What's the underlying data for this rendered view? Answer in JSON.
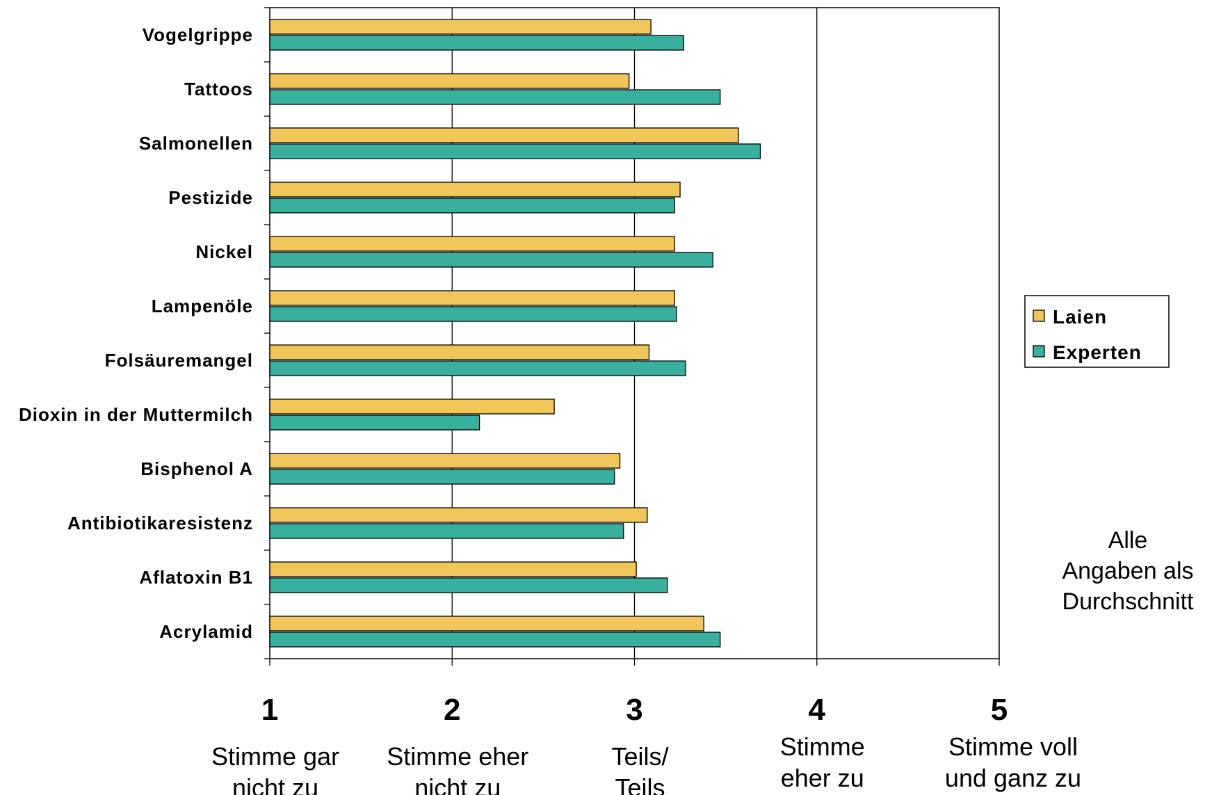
{
  "chart_data": {
    "type": "bar",
    "orientation": "horizontal",
    "categories": [
      "Vogelgrippe",
      "Tattoos",
      "Salmonellen",
      "Pestizide",
      "Nickel",
      "Lampenöle",
      "Folsäuremangel",
      "Dioxin in der Muttermilch",
      "Bisphenol A",
      "Antibiotikaresistenz",
      "Aflatoxin B1",
      "Acrylamid"
    ],
    "series": [
      {
        "name": "Laien",
        "color": "#f0c65a",
        "values": [
          3.09,
          2.97,
          3.57,
          3.25,
          3.22,
          3.22,
          3.08,
          2.56,
          2.92,
          3.07,
          3.01,
          3.38
        ]
      },
      {
        "name": "Experten",
        "color": "#38b09d",
        "values": [
          3.27,
          3.47,
          3.69,
          3.22,
          3.43,
          3.23,
          3.28,
          2.15,
          2.89,
          2.94,
          3.18,
          3.47
        ]
      }
    ],
    "xlim": [
      1,
      5
    ],
    "xticks": [
      {
        "value": 1,
        "label": "1",
        "desc": [
          "Stimme gar",
          "nicht zu"
        ]
      },
      {
        "value": 2,
        "label": "2",
        "desc": [
          "Stimme eher",
          "nicht zu"
        ]
      },
      {
        "value": 3,
        "label": "3",
        "desc": [
          "Teils/",
          "Teils"
        ]
      },
      {
        "value": 4,
        "label": "4",
        "desc": [
          "Stimme",
          "eher zu"
        ]
      },
      {
        "value": 5,
        "label": "5",
        "desc": [
          "Stimme voll",
          "und ganz zu"
        ]
      }
    ],
    "legend": {
      "position": "right",
      "items": [
        "Laien",
        "Experten"
      ]
    },
    "note": [
      "Alle",
      "Angaben als",
      "Durchschnitt"
    ],
    "grid": "vertical at 4"
  }
}
